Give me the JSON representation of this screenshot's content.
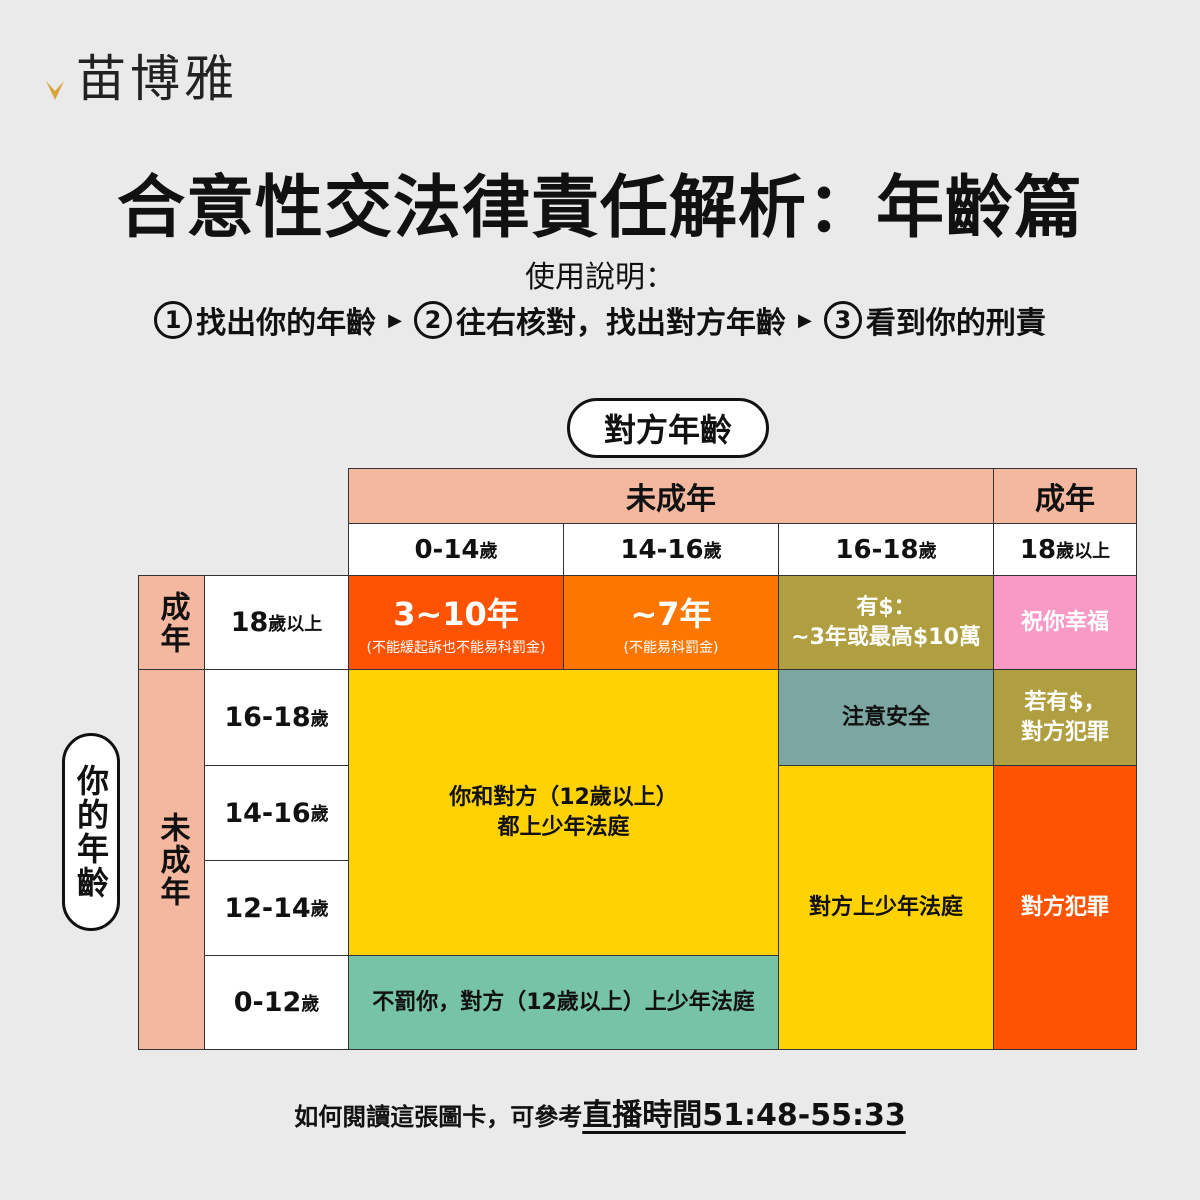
{
  "brand": {
    "name": "苗博雅",
    "accent": "#d9a43a"
  },
  "title": "合意性交法律責任解析：年齡篇",
  "instructions": {
    "label": "使用說明：",
    "steps": [
      {
        "num": "1",
        "text": "找出你的年齡"
      },
      {
        "num": "2",
        "text": "往右核對，找出對方年齡"
      },
      {
        "num": "3",
        "text": "看到你的刑責"
      }
    ]
  },
  "axis": {
    "other_age": "對方年齡",
    "your_age": "你的年齡"
  },
  "columns": {
    "minor": "未成年",
    "adult": "成年",
    "ages": [
      {
        "num": "0-14",
        "unit": "歲"
      },
      {
        "num": "14-16",
        "unit": "歲"
      },
      {
        "num": "16-18",
        "unit": "歲"
      },
      {
        "num": "18",
        "unit": "歲以上"
      }
    ]
  },
  "rows": {
    "adult": "成年",
    "minor": "未成年",
    "ages": [
      {
        "num": "18",
        "unit": "歲以上"
      },
      {
        "num": "16-18",
        "unit": "歲"
      },
      {
        "num": "14-16",
        "unit": "歲"
      },
      {
        "num": "12-14",
        "unit": "歲"
      },
      {
        "num": "0-12",
        "unit": "歲"
      }
    ]
  },
  "cells": {
    "a_0_14": {
      "main": "3~10年",
      "note": "(不能緩起訴也不能易科罰金)"
    },
    "a_14_16": {
      "main": "~7年",
      "note": "(不能易科罰金)"
    },
    "a_16_18": {
      "line1": "有$：",
      "line2": "~3年或最高$10萬"
    },
    "a_18": "祝你幸福",
    "m16_18": "注意安全",
    "m16_adult": {
      "line1": "若有$，",
      "line2": "對方犯罪"
    },
    "juvenile_both": {
      "line1": "你和對方（12歲以上）",
      "line2": "都上少年法庭"
    },
    "other_juvenile": "對方上少年法庭",
    "other_crime": "對方犯罪",
    "under12": "不罰你，對方（12歲以上）上少年法庭"
  },
  "colors": {
    "header": "#f4b79f",
    "red_orange": "#fd5302",
    "orange": "#fd7700",
    "olive": "#b09f40",
    "pink": "#f99ac6",
    "teal": "#7ca6a2",
    "yellow": "#fed203",
    "green": "#77c3a6"
  },
  "footer": {
    "text": "如何閱讀這張圖卡，可參考",
    "link": "直播時間51:48-55:33"
  }
}
